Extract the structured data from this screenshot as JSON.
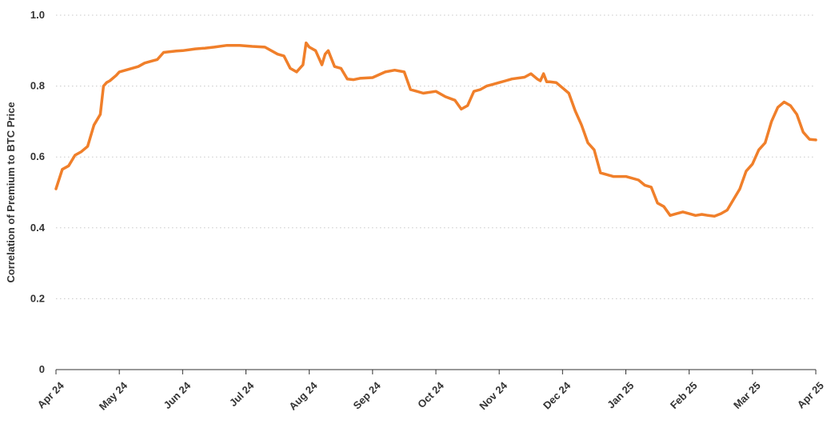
{
  "chart_data": {
    "type": "line",
    "title": "",
    "xlabel": "",
    "ylabel": "Correlation of Premium to BTC Price",
    "ylim": [
      0,
      1.0
    ],
    "yticks": [
      "0",
      "0.2",
      "0.4",
      "0.6",
      "0.8",
      "1.0"
    ],
    "ytick_values": [
      0,
      0.2,
      0.4,
      0.6,
      0.8,
      1.0
    ],
    "grid": "horizontal dotted",
    "line_color": "#F07F2A",
    "xtick_labels": [
      "Apr 24",
      "May 24",
      "Jun 24",
      "Jul 24",
      "Aug 24",
      "Sep 24",
      "Oct 24",
      "Nov 24",
      "Dec 24",
      "Jan 25",
      "Feb 25",
      "Mar 25",
      "Apr 25"
    ],
    "xtick_positions": [
      0,
      1,
      2,
      3,
      4,
      5,
      6,
      7,
      8,
      9,
      10,
      11,
      12
    ],
    "xlim": [
      0,
      12
    ],
    "series": [
      {
        "x": [
          0,
          0.1,
          0.2,
          0.3,
          0.4,
          0.5,
          0.6,
          0.7,
          0.75,
          0.8,
          0.85,
          0.95,
          1.0,
          1.1,
          1.2,
          1.3,
          1.4,
          1.5,
          1.6,
          1.7,
          1.8,
          1.9,
          2.0,
          2.2,
          2.35,
          2.5,
          2.7,
          2.9,
          3.1,
          3.3,
          3.5,
          3.6,
          3.7,
          3.8,
          3.9,
          3.95,
          4.0,
          4.1,
          4.2,
          4.25,
          4.3,
          4.4,
          4.5,
          4.6,
          4.7,
          4.8,
          5.0,
          5.2,
          5.35,
          5.5,
          5.6,
          5.7,
          5.8,
          6.0,
          6.15,
          6.3,
          6.4,
          6.5,
          6.6,
          6.7,
          6.8,
          6.9,
          7.0,
          7.1,
          7.2,
          7.4,
          7.5,
          7.6,
          7.65,
          7.7,
          7.75,
          7.8,
          7.9,
          8.0,
          8.1,
          8.2,
          8.3,
          8.4,
          8.5,
          8.6,
          8.7,
          8.8,
          9.0,
          9.2,
          9.3,
          9.4,
          9.5,
          9.6,
          9.7,
          9.8,
          9.9,
          10.0,
          10.1,
          10.2,
          10.3,
          10.4,
          10.5,
          10.6,
          10.7,
          10.8,
          10.9,
          11.0,
          11.1,
          11.2,
          11.3,
          11.4,
          11.5,
          11.6,
          11.7,
          11.8,
          11.9,
          12.0
        ],
        "y": [
          0.51,
          0.565,
          0.575,
          0.605,
          0.615,
          0.63,
          0.69,
          0.72,
          0.8,
          0.81,
          0.815,
          0.83,
          0.84,
          0.845,
          0.85,
          0.855,
          0.865,
          0.87,
          0.875,
          0.895,
          0.897,
          0.899,
          0.9,
          0.905,
          0.907,
          0.91,
          0.915,
          0.915,
          0.912,
          0.91,
          0.89,
          0.885,
          0.85,
          0.84,
          0.86,
          0.922,
          0.91,
          0.9,
          0.86,
          0.89,
          0.9,
          0.855,
          0.85,
          0.82,
          0.818,
          0.822,
          0.824,
          0.84,
          0.845,
          0.84,
          0.79,
          0.785,
          0.78,
          0.785,
          0.77,
          0.76,
          0.735,
          0.745,
          0.785,
          0.79,
          0.8,
          0.805,
          0.81,
          0.815,
          0.82,
          0.825,
          0.835,
          0.82,
          0.815,
          0.835,
          0.812,
          0.812,
          0.81,
          0.795,
          0.78,
          0.73,
          0.69,
          0.64,
          0.62,
          0.555,
          0.55,
          0.545,
          0.545,
          0.535,
          0.52,
          0.515,
          0.47,
          0.46,
          0.435,
          0.44,
          0.445,
          0.44,
          0.435,
          0.438,
          0.435,
          0.433,
          0.44,
          0.45,
          0.48,
          0.51,
          0.56,
          0.58,
          0.62,
          0.64,
          0.7,
          0.74,
          0.755,
          0.745,
          0.72,
          0.67,
          0.65,
          0.648
        ]
      }
    ]
  }
}
